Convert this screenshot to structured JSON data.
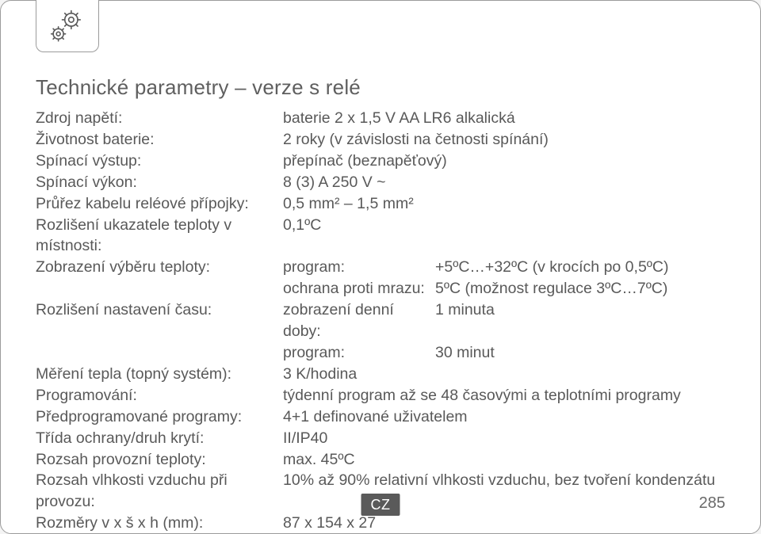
{
  "title": "Technické parametry – verze s relé",
  "rows": [
    {
      "label": "Zdroj napětí:",
      "value": "baterie 2 x 1,5 V AA LR6 alkalická"
    },
    {
      "label": "Životnost baterie:",
      "value": "2 roky (v závislosti na četnosti spínání)"
    },
    {
      "label": "Spínací výstup:",
      "value": "přepínač (beznapěťový)"
    },
    {
      "label": "Spínací výkon:",
      "value": "8 (3) A 250 V ~"
    },
    {
      "label": "Průřez kabelu reléové přípojky:",
      "value": "0,5 mm² – 1,5 mm²"
    },
    {
      "label": "Rozlišení ukazatele teploty v místnosti:",
      "value": "0,1ºC"
    }
  ],
  "display_temp": {
    "label": "Zobrazení výběru teploty:",
    "line1": {
      "c1": "program:",
      "c2": "+5ºC…+32ºC (v krocích po 0,5ºC)"
    },
    "line2": {
      "c1": "ochrana proti mrazu:",
      "c2": "5ºC (možnost regulace 3ºC…7ºC)"
    }
  },
  "time_res": {
    "label": "Rozlišení nastavení času:",
    "line1": {
      "c1": "zobrazení denní doby:",
      "c2": "1 minuta"
    },
    "line2": {
      "c1": "program:",
      "c2": "30 minut"
    }
  },
  "rows2": [
    {
      "label": "Měření tepla (topný systém):",
      "value": "3 K/hodina"
    },
    {
      "label": "Programování:",
      "value": "týdenní program až se 48 časovými a teplotními programy"
    },
    {
      "label": "Předprogramované programy:",
      "value": "4+1 definované uživatelem"
    },
    {
      "label": "Třída ochrany/druh krytí:",
      "value": "II/IP40"
    },
    {
      "label": "Rozsah provozní teploty:",
      "value": "max. 45ºC"
    },
    {
      "label": "Rozsah vlhkosti vzduchu při provozu:",
      "value": "10% až 90% relativní vlhkosti vzduchu, bez tvoření kondenzátu"
    },
    {
      "label": "Rozměry v x š x h (mm):",
      "value": "87 x 154 x 27"
    }
  ],
  "lang": "CZ",
  "page_number": "285"
}
